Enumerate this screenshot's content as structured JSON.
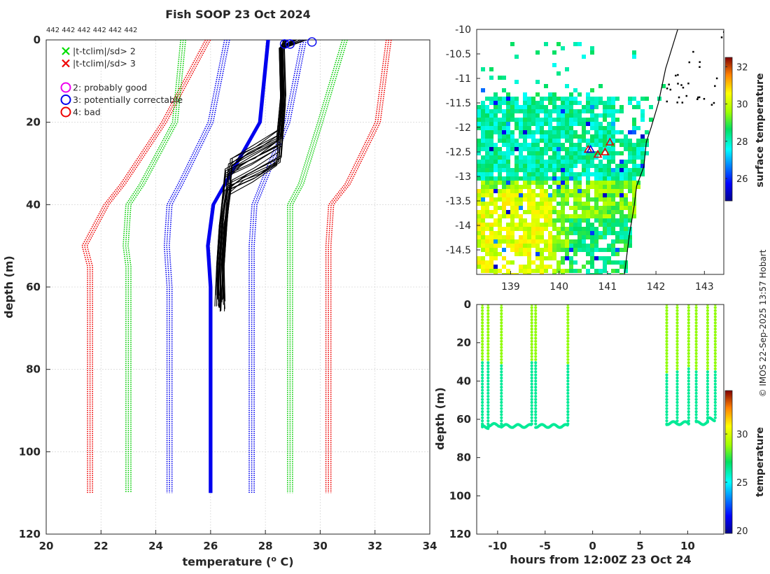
{
  "chart_data": [
    {
      "type": "line",
      "title": "Fish SOOP 23 Oct 2024",
      "top_counts_label": "442 442 442 442 442 442",
      "xlabel_pre": "temperature (",
      "xlabel_sup": "o",
      "xlabel_post": " C)",
      "ylabel": "depth (m)",
      "xlim": [
        20,
        34
      ],
      "ylim": [
        120,
        0
      ],
      "xticks": [
        20,
        22,
        24,
        26,
        28,
        30,
        32,
        34
      ],
      "yticks": [
        0,
        20,
        40,
        60,
        80,
        100,
        120
      ],
      "grid": true,
      "legend": [
        {
          "marker": "x",
          "color": "#00dd00",
          "label": "|t-tclim|/sd> 2"
        },
        {
          "marker": "x",
          "color": "#ee0000",
          "label": "|t-tclim|/sd> 3"
        },
        {
          "marker": "o",
          "color": "#ee00ee",
          "label": "2: probably good"
        },
        {
          "marker": "o",
          "color": "#0000ee",
          "label": "3: potentially correctable"
        },
        {
          "marker": "o",
          "color": "#ee0000",
          "label": "4: bad"
        }
      ],
      "clim_series": [
        {
          "name": "clim-3sd-low",
          "color": "#ee0000",
          "depth": [
            0,
            20,
            35,
            40,
            50,
            55,
            60,
            110
          ],
          "temp": [
            25.9,
            24.3,
            22.8,
            22.2,
            21.4,
            21.6,
            21.6,
            21.6
          ]
        },
        {
          "name": "clim-2sd-low",
          "color": "#00cc00",
          "depth": [
            0,
            20,
            35,
            40,
            50,
            55,
            60,
            110
          ],
          "temp": [
            25.0,
            24.7,
            23.5,
            23.0,
            22.9,
            23.0,
            23.0,
            23.0
          ]
        },
        {
          "name": "clim-mean-low",
          "color": "#0000ee",
          "depth": [
            0,
            20,
            35,
            40,
            50,
            60,
            110
          ],
          "temp": [
            26.6,
            26.0,
            24.9,
            24.5,
            24.4,
            24.5,
            24.5
          ]
        },
        {
          "name": "clim-mean-high",
          "color": "#0000ee",
          "depth": [
            0,
            20,
            35,
            40,
            50,
            60,
            110
          ],
          "temp": [
            29.4,
            28.8,
            27.9,
            27.6,
            27.5,
            27.5,
            27.5
          ]
        },
        {
          "name": "clim-2sd-high",
          "color": "#00cc00",
          "depth": [
            0,
            20,
            35,
            40,
            50,
            60,
            110
          ],
          "temp": [
            30.9,
            30.0,
            29.3,
            28.9,
            28.9,
            28.9,
            28.9
          ]
        },
        {
          "name": "clim-3sd-high",
          "color": "#ee0000",
          "depth": [
            0,
            20,
            35,
            40,
            50,
            60,
            110
          ],
          "temp": [
            32.5,
            32.1,
            31.0,
            30.4,
            30.3,
            30.3,
            30.3
          ]
        }
      ],
      "clim_mean": {
        "name": "climatology",
        "color": "#0000ee",
        "depth": [
          0,
          20,
          40,
          50,
          60,
          110
        ],
        "temp": [
          28.1,
          27.8,
          26.1,
          25.9,
          26.0,
          26.0
        ]
      },
      "profile_set": {
        "count": 24,
        "color": "#000000",
        "surface_temp": [
          28.6,
          29.5
        ],
        "mid_depth_temp": 28.6,
        "mixed_layer_depth": [
          24,
          34
        ],
        "deep_temp": [
          26.2,
          26.5
        ],
        "bottom_depth": [
          62,
          66
        ]
      },
      "qc_flag_circles": [
        {
          "flag": 3,
          "temp": 28.7,
          "depth": 1
        },
        {
          "flag": 3,
          "temp": 28.9,
          "depth": 1
        },
        {
          "flag": 3,
          "temp": 29.7,
          "depth": 0.5
        }
      ]
    },
    {
      "type": "heatmap",
      "ylim": [
        -15,
        -10
      ],
      "xlim": [
        138.3,
        143.4
      ],
      "yticks": [
        -10,
        -10.5,
        -11,
        -11.5,
        -12,
        -12.5,
        -13,
        -13.5,
        -14,
        -14.5
      ],
      "xticks": [
        139,
        140,
        141,
        142,
        143
      ],
      "colorbar_label": "surface temperature",
      "colorbar_ticks": [
        26,
        28,
        30,
        32
      ],
      "colorbar_range": [
        24.8,
        32.5
      ],
      "station_markers": [
        {
          "lon": 140.6,
          "lat": -12.45,
          "color": "#dd0000"
        },
        {
          "lon": 140.8,
          "lat": -12.55,
          "color": "#dd0000"
        },
        {
          "lon": 140.95,
          "lat": -12.5,
          "color": "#dd0000"
        },
        {
          "lon": 141.05,
          "lat": -12.3,
          "color": "#dd0000"
        },
        {
          "lon": 140.65,
          "lat": -12.45,
          "color": "#0000dd"
        }
      ]
    },
    {
      "type": "scatter",
      "xlabel": "hours from 12:00Z 23 Oct 24",
      "ylabel": "depth (m)",
      "xlim": [
        -12.2,
        13.8
      ],
      "ylim": [
        120,
        0
      ],
      "xticks": [
        -10,
        -5,
        0,
        5,
        10
      ],
      "yticks": [
        0,
        20,
        40,
        60,
        80,
        100,
        120
      ],
      "colorbar_label": "temperature",
      "colorbar_ticks": [
        20,
        25,
        30
      ],
      "colorbar_range": [
        19.7,
        34.5
      ],
      "casts": [
        {
          "hour": -11.6,
          "max_depth": 65,
          "mixed_depth": 30
        },
        {
          "hour": -11.0,
          "max_depth": 64,
          "mixed_depth": 30
        },
        {
          "hour": -9.6,
          "max_depth": 63,
          "mixed_depth": 31
        },
        {
          "hour": -6.4,
          "max_depth": 64,
          "mixed_depth": 29
        },
        {
          "hour": -6.0,
          "max_depth": 63,
          "mixed_depth": 30
        },
        {
          "hour": -2.6,
          "max_depth": 64,
          "mixed_depth": 32
        },
        {
          "hour": 7.8,
          "max_depth": 63,
          "mixed_depth": 36
        },
        {
          "hour": 8.9,
          "max_depth": 62,
          "mixed_depth": 34
        },
        {
          "hour": 10.1,
          "max_depth": 63,
          "mixed_depth": 33
        },
        {
          "hour": 10.9,
          "max_depth": 62,
          "mixed_depth": 35
        },
        {
          "hour": 12.1,
          "max_depth": 61,
          "mixed_depth": 34
        },
        {
          "hour": 12.9,
          "max_depth": 60,
          "mixed_depth": 35
        }
      ],
      "bottom_runs": [
        {
          "from": -11.6,
          "to": -11.0,
          "depth": 64
        },
        {
          "from": -11.0,
          "to": -9.6,
          "depth": 63
        },
        {
          "from": -9.6,
          "to": -6.4,
          "depth": 63.5
        },
        {
          "from": -6.0,
          "to": -2.6,
          "depth": 63.5
        },
        {
          "from": 7.8,
          "to": 8.9,
          "depth": 62
        },
        {
          "from": 8.9,
          "to": 10.1,
          "depth": 62
        },
        {
          "from": 10.9,
          "to": 12.1,
          "depth": 62
        },
        {
          "from": 12.1,
          "to": 12.9,
          "depth": 60
        }
      ]
    }
  ],
  "credit": "© IMOS 22-Sep-2025 13:57 Hobart"
}
